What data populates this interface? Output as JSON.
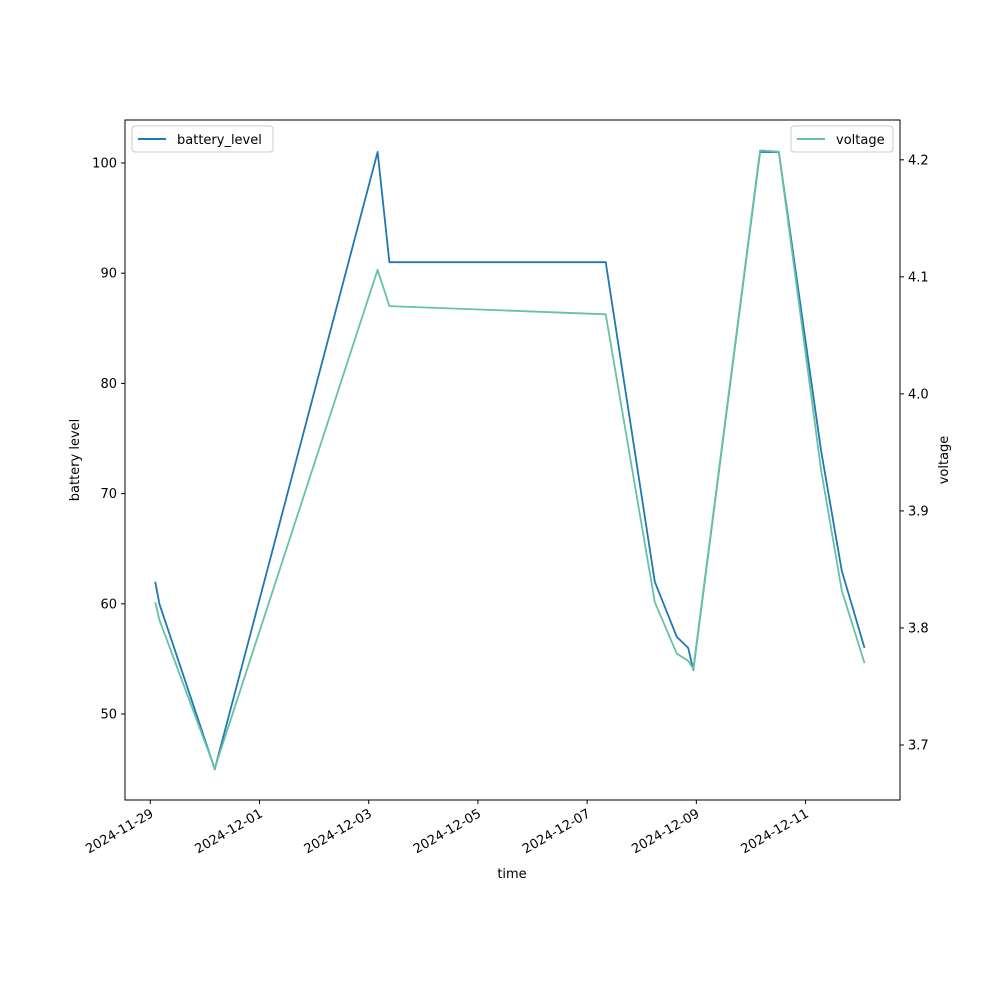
{
  "chart_data": {
    "type": "line",
    "title": "",
    "xlabel": "time",
    "ylabel_left": "battery level",
    "ylabel_right": "voltage",
    "x_axis_type": "date",
    "xlim": [
      "2024-11-28 12:53",
      "2024-12-12 17:31"
    ],
    "ylim_left": [
      42.2,
      103.9
    ],
    "ylim_right": [
      3.653,
      4.234
    ],
    "x_ticks": [
      "2024-11-29",
      "2024-12-01",
      "2024-12-03",
      "2024-12-05",
      "2024-12-07",
      "2024-12-09",
      "2024-12-11"
    ],
    "y_ticks_left": [
      50,
      60,
      70,
      80,
      90,
      100
    ],
    "y_ticks_right": [
      "3.7",
      "3.8",
      "3.9",
      "4.0",
      "4.1",
      "4.2"
    ],
    "grid": false,
    "series": [
      {
        "name": "battery_level",
        "axis": "left",
        "color": "#1f77b4",
        "legend_position": "upper left",
        "points": [
          [
            "2024-11-29 02:10",
            62
          ],
          [
            "2024-11-29 04:00",
            60
          ],
          [
            "2024-11-30 04:20",
            45
          ],
          [
            "2024-12-03 03:55",
            101
          ],
          [
            "2024-12-03 09:05",
            91
          ],
          [
            "2024-12-07 08:10",
            91
          ],
          [
            "2024-12-08 05:45",
            62
          ],
          [
            "2024-12-08 15:25",
            57
          ],
          [
            "2024-12-08 20:25",
            56
          ],
          [
            "2024-12-08 22:40",
            54
          ],
          [
            "2024-12-10 04:00",
            101
          ],
          [
            "2024-12-10 12:15",
            101
          ],
          [
            "2024-12-11 06:45",
            74
          ],
          [
            "2024-12-11 15:55",
            63
          ],
          [
            "2024-12-12 01:55",
            56
          ]
        ]
      },
      {
        "name": "voltage",
        "axis": "right",
        "color": "#66c2a5",
        "legend_position": "upper right",
        "points": [
          [
            "2024-11-29 02:10",
            3.822
          ],
          [
            "2024-11-29 04:00",
            3.807
          ],
          [
            "2024-11-30 04:20",
            3.68
          ],
          [
            "2024-12-03 03:55",
            4.106
          ],
          [
            "2024-12-03 09:05",
            4.075
          ],
          [
            "2024-12-07 08:10",
            4.068
          ],
          [
            "2024-12-08 05:45",
            3.822
          ],
          [
            "2024-12-08 15:25",
            3.778
          ],
          [
            "2024-12-08 20:25",
            3.772
          ],
          [
            "2024-12-08 22:40",
            3.765
          ],
          [
            "2024-12-10 04:00",
            4.208
          ],
          [
            "2024-12-10 12:15",
            4.207
          ],
          [
            "2024-12-11 06:45",
            3.936
          ],
          [
            "2024-12-11 15:55",
            3.832
          ],
          [
            "2024-12-12 01:55",
            3.77
          ]
        ]
      }
    ]
  }
}
